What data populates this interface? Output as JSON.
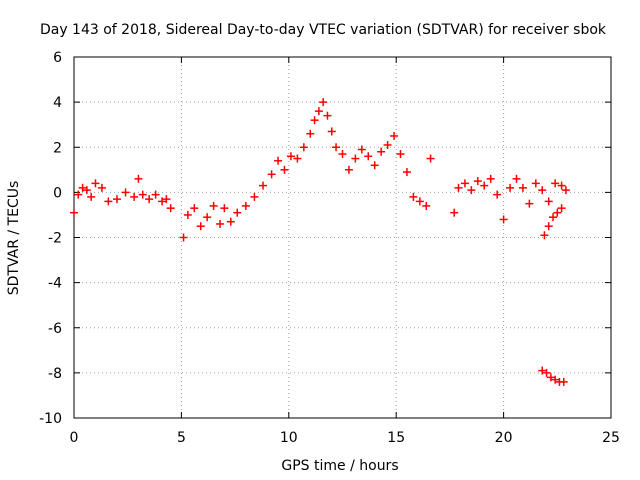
{
  "chart_data": {
    "type": "scatter",
    "title": "Day 143 of 2018, Sidereal Day-to-day VTEC variation (SDTVAR) for receiver sbok",
    "xlabel": "GPS time / hours",
    "ylabel": "SDTVAR / TECUs",
    "xlim": [
      0,
      25
    ],
    "ylim": [
      -10,
      6
    ],
    "xticks": [
      0,
      5,
      10,
      15,
      20,
      25
    ],
    "yticks": [
      -10,
      -8,
      -6,
      -4,
      -2,
      0,
      2,
      4,
      6
    ],
    "grid": true,
    "marker": "+",
    "color": "#ff0000",
    "series": [
      {
        "name": "sbok",
        "x": [
          0.0,
          0.2,
          0.4,
          0.6,
          0.8,
          1.0,
          1.3,
          1.6,
          2.0,
          2.4,
          2.8,
          3.0,
          3.2,
          3.5,
          3.8,
          4.1,
          4.3,
          4.5,
          5.1,
          5.3,
          5.6,
          5.9,
          6.2,
          6.5,
          6.8,
          7.0,
          7.3,
          7.6,
          8.0,
          8.4,
          8.8,
          9.2,
          9.5,
          9.8,
          10.1,
          10.4,
          10.7,
          11.0,
          11.2,
          11.4,
          11.6,
          11.8,
          12.0,
          12.2,
          12.5,
          12.8,
          13.1,
          13.4,
          13.7,
          14.0,
          14.3,
          14.6,
          14.9,
          15.2,
          15.5,
          15.8,
          16.1,
          16.4,
          16.6,
          17.7,
          17.9,
          18.2,
          18.5,
          18.8,
          19.1,
          19.4,
          19.7,
          20.0,
          20.3,
          20.6,
          20.9,
          21.2,
          21.5,
          21.8,
          22.1,
          22.4,
          22.7,
          22.9,
          21.9,
          22.1,
          22.3,
          22.5,
          22.7,
          21.8,
          22.0,
          22.2,
          22.4,
          22.6,
          22.8
        ],
        "y": [
          -0.9,
          -0.1,
          0.2,
          0.1,
          -0.2,
          0.4,
          0.2,
          -0.4,
          -0.3,
          0.0,
          -0.2,
          0.6,
          -0.1,
          -0.3,
          -0.1,
          -0.4,
          -0.3,
          -0.7,
          -2.0,
          -1.0,
          -0.7,
          -1.5,
          -1.1,
          -0.6,
          -1.4,
          -0.7,
          -1.3,
          -0.9,
          -0.6,
          -0.2,
          0.3,
          0.8,
          1.4,
          1.0,
          1.6,
          1.5,
          2.0,
          2.6,
          3.2,
          3.6,
          4.0,
          3.4,
          2.7,
          2.0,
          1.7,
          1.0,
          1.5,
          1.9,
          1.6,
          1.2,
          1.8,
          2.1,
          2.5,
          1.7,
          0.9,
          -0.2,
          -0.4,
          -0.6,
          1.5,
          -0.9,
          0.2,
          0.4,
          0.1,
          0.5,
          0.3,
          0.6,
          -0.1,
          -1.2,
          0.2,
          0.6,
          0.2,
          -0.5,
          0.4,
          0.1,
          -0.4,
          0.4,
          0.3,
          0.1,
          -1.9,
          -1.5,
          -1.1,
          -0.9,
          -0.7,
          -7.9,
          -8.0,
          -8.2,
          -8.3,
          -8.4,
          -8.4
        ]
      }
    ]
  }
}
